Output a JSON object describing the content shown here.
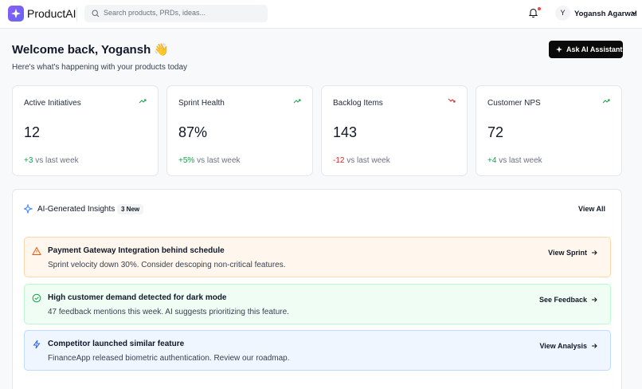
{
  "header": {
    "brand": "ProductAI",
    "search_placeholder": "Search products, PRDs, ideas...",
    "user_initial": "Y",
    "user_name": "Yogansh Agarwal"
  },
  "welcome": {
    "title": "Welcome back, Yogansh 👋",
    "subtitle": "Here's what's happening with your products today",
    "button": "Ask AI Assistant"
  },
  "metrics": [
    {
      "label": "Active Initiatives",
      "value": "12",
      "change": "+3",
      "change_suffix": "vs last week",
      "trend": "up"
    },
    {
      "label": "Sprint Health",
      "value": "87%",
      "change": "+5%",
      "change_suffix": "vs last week",
      "trend": "up"
    },
    {
      "label": "Backlog Items",
      "value": "143",
      "change": "-12",
      "change_suffix": "vs last week",
      "trend": "down"
    },
    {
      "label": "Customer NPS",
      "value": "72",
      "change": "+4",
      "change_suffix": "vs last week",
      "trend": "up"
    }
  ],
  "insights": {
    "title": "AI-Generated Insights",
    "badge": "3 New",
    "view_all": "View All",
    "items": [
      {
        "kind": "warning",
        "title": "Payment Gateway Integration behind schedule",
        "description": "Sprint velocity down 30%. Consider descoping non-critical features.",
        "action": "View Sprint"
      },
      {
        "kind": "success",
        "title": "High customer demand detected for dark mode",
        "description": "47 feedback mentions this week. AI suggests prioritizing this feature.",
        "action": "See Feedback"
      },
      {
        "kind": "info",
        "title": "Competitor launched similar feature",
        "description": "FinanceApp released biometric authentication. Review our roadmap.",
        "action": "View Analysis"
      }
    ]
  }
}
